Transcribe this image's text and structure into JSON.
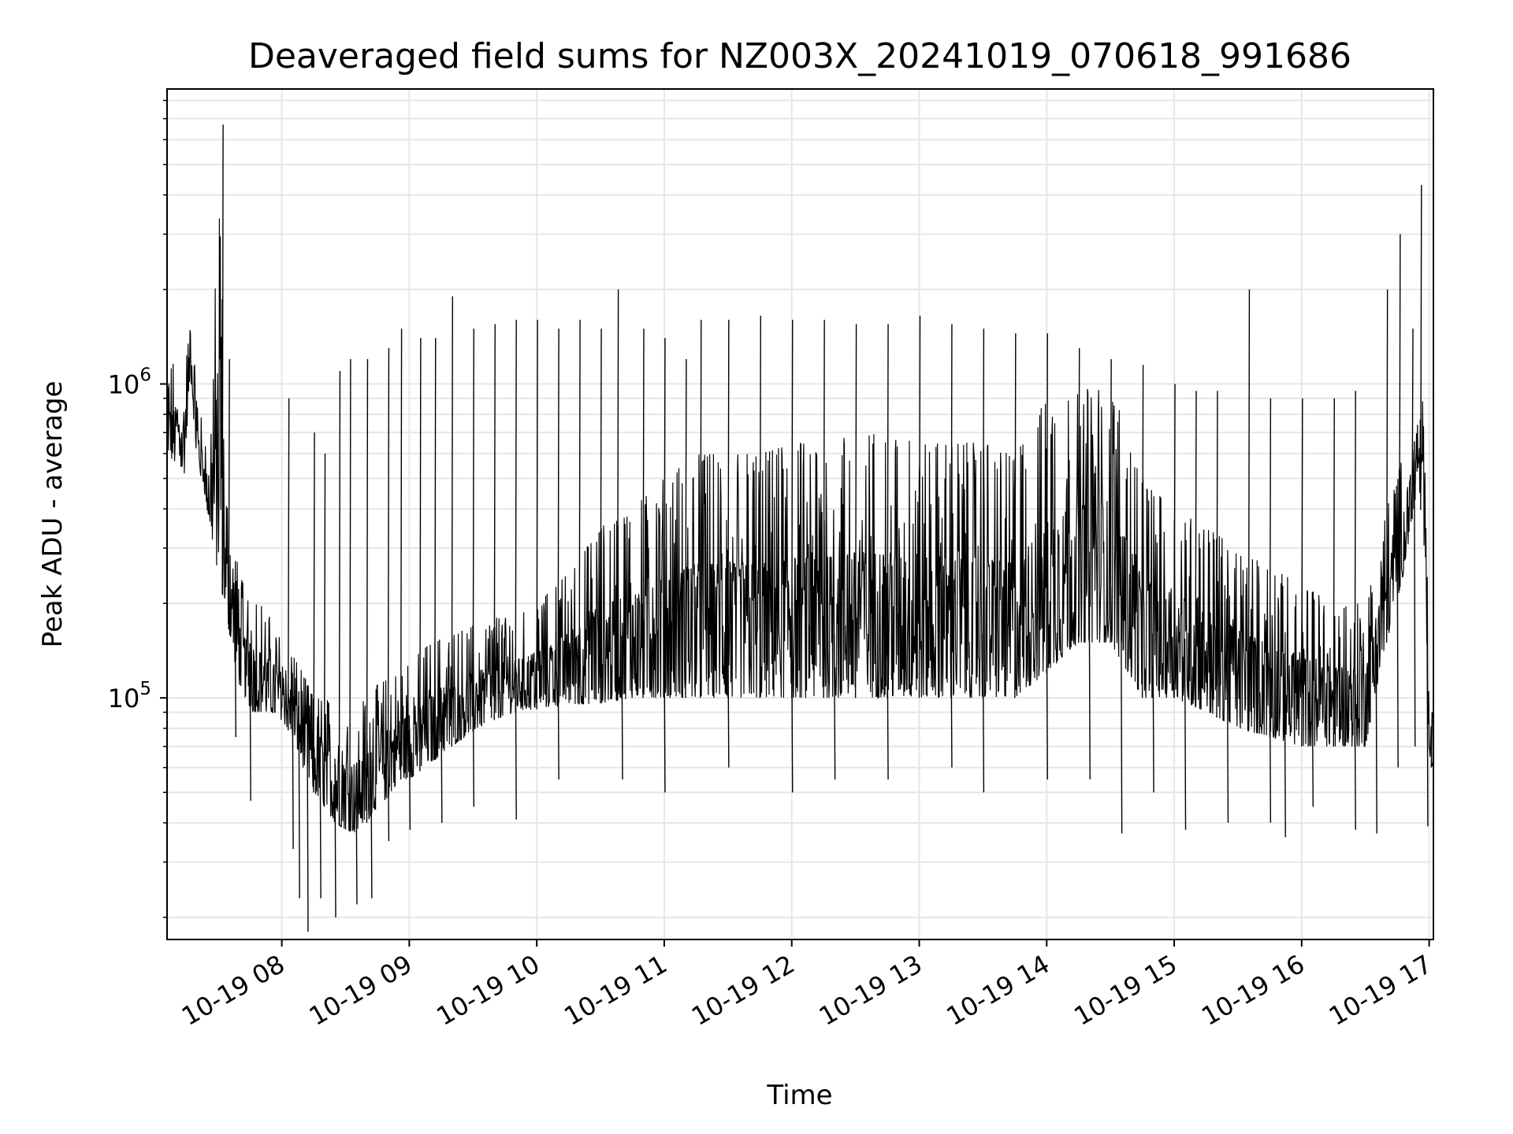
{
  "chart_data": {
    "type": "line",
    "title": "Deaveraged field sums for NZ003X_20241019_070618_991686",
    "xlabel": "Time",
    "ylabel": "Peak ADU - average",
    "yscale": "log",
    "ylim": [
      17000,
      8700000
    ],
    "xlim": [
      "2024-10-19 07:06",
      "2024-10-19 17:02"
    ],
    "grid": true,
    "line_color": "#000000",
    "grid_color": "#e6e6e6",
    "x_ticks": [
      {
        "value": "2024-10-19 08:00",
        "label": "10-19 08"
      },
      {
        "value": "2024-10-19 09:00",
        "label": "10-19 09"
      },
      {
        "value": "2024-10-19 10:00",
        "label": "10-19 10"
      },
      {
        "value": "2024-10-19 11:00",
        "label": "10-19 11"
      },
      {
        "value": "2024-10-19 12:00",
        "label": "10-19 12"
      },
      {
        "value": "2024-10-19 13:00",
        "label": "10-19 13"
      },
      {
        "value": "2024-10-19 14:00",
        "label": "10-19 14"
      },
      {
        "value": "2024-10-19 15:00",
        "label": "10-19 15"
      },
      {
        "value": "2024-10-19 16:00",
        "label": "10-19 16"
      },
      {
        "value": "2024-10-19 17:00",
        "label": "10-19 17"
      }
    ],
    "y_ticks": [
      {
        "value": 100000,
        "base": "10",
        "exp": "5"
      },
      {
        "value": 1000000,
        "base": "10",
        "exp": "6"
      }
    ],
    "series": [
      {
        "x": [
          "07:06",
          "07:10",
          "07:14",
          "07:17",
          "07:20",
          "07:23",
          "07:26",
          "07:29",
          "07:31",
          "07:33",
          "07:36",
          "07:40",
          "07:43",
          "07:46",
          "07:50",
          "07:55",
          "08:00",
          "08:05",
          "08:10",
          "08:15",
          "08:20",
          "08:25",
          "08:30",
          "08:35",
          "08:40",
          "08:45",
          "08:50",
          "08:55",
          "09:00",
          "09:10",
          "09:20",
          "09:30",
          "09:40",
          "09:50",
          "10:00",
          "10:15",
          "10:30",
          "10:45",
          "11:00",
          "11:15",
          "11:30",
          "11:45",
          "12:00",
          "12:15",
          "12:30",
          "12:45",
          "13:00",
          "13:15",
          "13:30",
          "13:45",
          "14:00",
          "14:15",
          "14:30",
          "14:45",
          "15:00",
          "15:15",
          "15:30",
          "15:45",
          "16:00",
          "16:15",
          "16:30",
          "16:40",
          "16:48",
          "16:55",
          "16:58",
          "17:00",
          "17:02"
        ],
        "low": [
          600000,
          550000,
          500000,
          1100000,
          550000,
          480000,
          350000,
          270000,
          230000,
          200000,
          150000,
          110000,
          100000,
          90000,
          90000,
          88000,
          85000,
          75000,
          60000,
          50000,
          45000,
          40000,
          38000,
          37000,
          40000,
          45000,
          48000,
          55000,
          55000,
          62000,
          70000,
          78000,
          85000,
          90000,
          92000,
          95000,
          96000,
          100000,
          100000,
          100000,
          100000,
          100000,
          100000,
          100000,
          100000,
          100000,
          100000,
          100000,
          100000,
          100000,
          120000,
          150000,
          150000,
          100000,
          100000,
          90000,
          80000,
          75000,
          70000,
          70000,
          70000,
          150000,
          250000,
          500000,
          250000,
          60000,
          60000
        ],
        "high": [
          1100000,
          1200000,
          1000000,
          1700000,
          1000000,
          700000,
          600000,
          2400000,
          6700000,
          500000,
          350000,
          250000,
          220000,
          220000,
          200000,
          180000,
          160000,
          140000,
          120000,
          100000,
          100000,
          95000,
          90000,
          95000,
          100000,
          110000,
          115000,
          120000,
          130000,
          150000,
          160000,
          170000,
          180000,
          180000,
          200000,
          250000,
          350000,
          400000,
          500000,
          600000,
          600000,
          600000,
          650000,
          650000,
          700000,
          700000,
          650000,
          650000,
          650000,
          600000,
          900000,
          950000,
          1000000,
          500000,
          400000,
          350000,
          300000,
          260000,
          230000,
          200000,
          200000,
          400000,
          600000,
          800000,
          1000000,
          80000,
          90000
        ],
        "spikes": [
          {
            "x": "07:32",
            "y": 6700000
          },
          {
            "x": "07:35",
            "y": 1200000
          },
          {
            "x": "08:03",
            "y": 900000
          },
          {
            "x": "08:15",
            "y": 700000
          },
          {
            "x": "08:20",
            "y": 600000
          },
          {
            "x": "08:27",
            "y": 1100000
          },
          {
            "x": "08:32",
            "y": 1200000
          },
          {
            "x": "08:40",
            "y": 1200000
          },
          {
            "x": "08:50",
            "y": 1300000
          },
          {
            "x": "08:56",
            "y": 1500000
          },
          {
            "x": "09:05",
            "y": 1400000
          },
          {
            "x": "09:12",
            "y": 1400000
          },
          {
            "x": "09:20",
            "y": 1900000
          },
          {
            "x": "09:30",
            "y": 1500000
          },
          {
            "x": "09:40",
            "y": 1550000
          },
          {
            "x": "09:50",
            "y": 1600000
          },
          {
            "x": "10:00",
            "y": 1600000
          },
          {
            "x": "10:10",
            "y": 1500000
          },
          {
            "x": "10:20",
            "y": 1600000
          },
          {
            "x": "10:30",
            "y": 1500000
          },
          {
            "x": "10:38",
            "y": 2000000
          },
          {
            "x": "10:50",
            "y": 1500000
          },
          {
            "x": "11:00",
            "y": 1400000
          },
          {
            "x": "11:10",
            "y": 1200000
          },
          {
            "x": "11:17",
            "y": 1600000
          },
          {
            "x": "11:30",
            "y": 1600000
          },
          {
            "x": "11:45",
            "y": 1650000
          },
          {
            "x": "12:00",
            "y": 1600000
          },
          {
            "x": "12:15",
            "y": 1600000
          },
          {
            "x": "12:30",
            "y": 1550000
          },
          {
            "x": "12:45",
            "y": 1550000
          },
          {
            "x": "13:00",
            "y": 1650000
          },
          {
            "x": "13:15",
            "y": 1550000
          },
          {
            "x": "13:30",
            "y": 1500000
          },
          {
            "x": "13:45",
            "y": 1450000
          },
          {
            "x": "14:00",
            "y": 1450000
          },
          {
            "x": "14:15",
            "y": 1300000
          },
          {
            "x": "14:30",
            "y": 1200000
          },
          {
            "x": "14:45",
            "y": 1150000
          },
          {
            "x": "15:00",
            "y": 1000000
          },
          {
            "x": "15:10",
            "y": 950000
          },
          {
            "x": "15:20",
            "y": 950000
          },
          {
            "x": "15:35",
            "y": 2000000
          },
          {
            "x": "15:45",
            "y": 900000
          },
          {
            "x": "16:00",
            "y": 900000
          },
          {
            "x": "16:15",
            "y": 900000
          },
          {
            "x": "16:25",
            "y": 950000
          },
          {
            "x": "16:40",
            "y": 2000000
          },
          {
            "x": "16:46",
            "y": 3000000
          },
          {
            "x": "16:52",
            "y": 1500000
          },
          {
            "x": "16:56",
            "y": 4300000
          },
          {
            "x": "17:01",
            "y": 90000
          }
        ],
        "dips": [
          {
            "x": "07:38",
            "y": 75000
          },
          {
            "x": "07:45",
            "y": 47000
          },
          {
            "x": "08:05",
            "y": 33000
          },
          {
            "x": "08:08",
            "y": 23000
          },
          {
            "x": "08:12",
            "y": 18000
          },
          {
            "x": "08:18",
            "y": 23000
          },
          {
            "x": "08:25",
            "y": 20000
          },
          {
            "x": "08:35",
            "y": 22000
          },
          {
            "x": "08:42",
            "y": 23000
          },
          {
            "x": "08:50",
            "y": 35000
          },
          {
            "x": "09:00",
            "y": 38000
          },
          {
            "x": "09:15",
            "y": 40000
          },
          {
            "x": "09:30",
            "y": 45000
          },
          {
            "x": "09:50",
            "y": 41000
          },
          {
            "x": "10:10",
            "y": 55000
          },
          {
            "x": "10:40",
            "y": 55000
          },
          {
            "x": "11:00",
            "y": 50000
          },
          {
            "x": "11:30",
            "y": 60000
          },
          {
            "x": "12:00",
            "y": 50000
          },
          {
            "x": "12:20",
            "y": 55000
          },
          {
            "x": "12:45",
            "y": 55000
          },
          {
            "x": "13:15",
            "y": 60000
          },
          {
            "x": "13:30",
            "y": 50000
          },
          {
            "x": "14:00",
            "y": 55000
          },
          {
            "x": "14:20",
            "y": 55000
          },
          {
            "x": "14:35",
            "y": 37000
          },
          {
            "x": "14:50",
            "y": 50000
          },
          {
            "x": "15:05",
            "y": 38000
          },
          {
            "x": "15:25",
            "y": 40000
          },
          {
            "x": "15:45",
            "y": 40000
          },
          {
            "x": "15:52",
            "y": 36000
          },
          {
            "x": "16:05",
            "y": 45000
          },
          {
            "x": "16:25",
            "y": 38000
          },
          {
            "x": "16:35",
            "y": 37000
          },
          {
            "x": "16:45",
            "y": 60000
          },
          {
            "x": "16:53",
            "y": 70000
          },
          {
            "x": "16:59",
            "y": 39000
          }
        ]
      }
    ]
  }
}
